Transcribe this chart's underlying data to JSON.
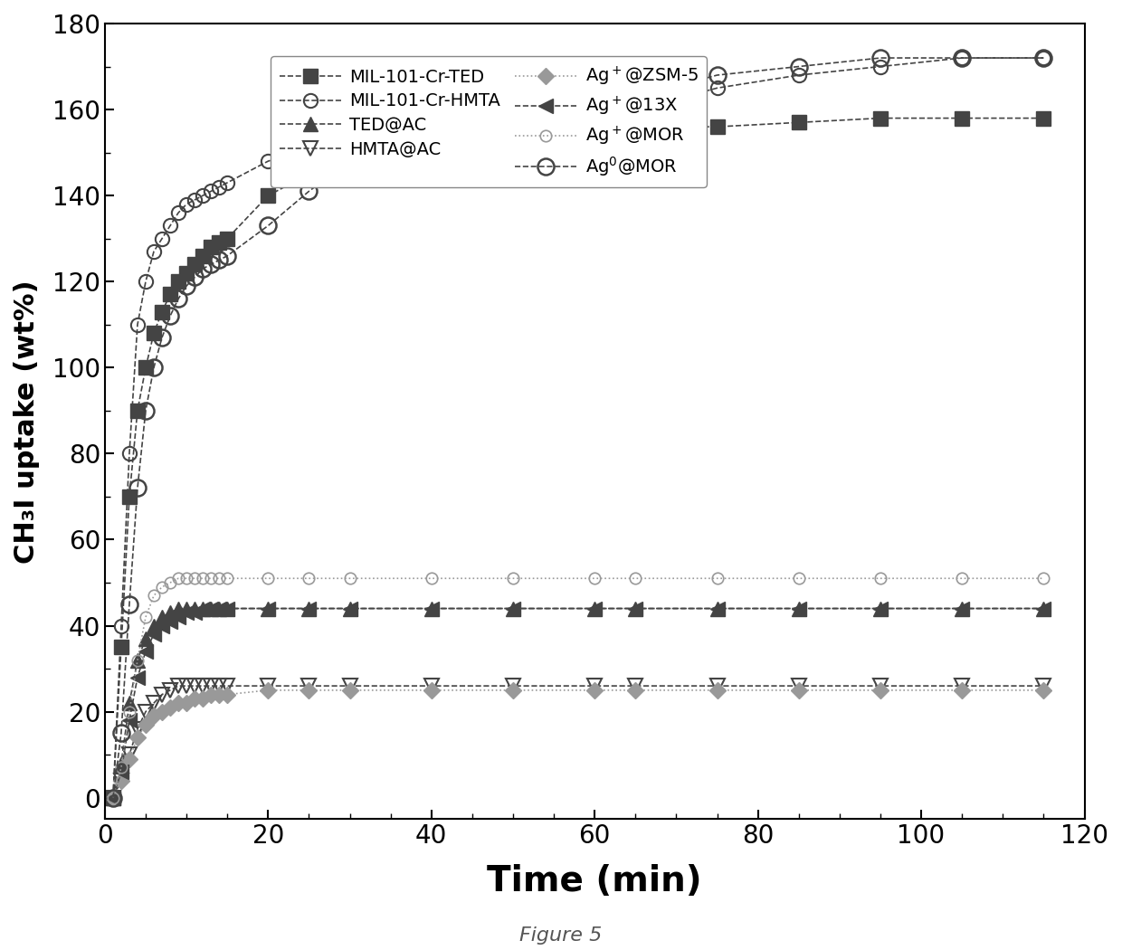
{
  "xlabel": "Time (min)",
  "ylabel": "CH₃I uptake (wt%)",
  "xlim": [
    0,
    120
  ],
  "ylim": [
    -5,
    180
  ],
  "xticks": [
    0,
    20,
    40,
    60,
    80,
    100,
    120
  ],
  "yticks": [
    0,
    20,
    40,
    60,
    80,
    100,
    120,
    140,
    160,
    180
  ],
  "figcaption": "Figure 5",
  "series": [
    {
      "label": "MIL-101-Cr-TED",
      "marker": "s",
      "fillstyle": "full",
      "x": [
        1,
        2,
        3,
        4,
        5,
        6,
        7,
        8,
        9,
        10,
        11,
        12,
        13,
        14,
        15,
        20,
        25,
        30,
        40,
        50,
        60,
        65,
        75,
        85,
        95,
        105,
        115
      ],
      "y": [
        0,
        35,
        70,
        90,
        100,
        108,
        113,
        117,
        120,
        122,
        124,
        126,
        128,
        129,
        130,
        140,
        145,
        148,
        152,
        154,
        155,
        156,
        156,
        157,
        158,
        158,
        158
      ]
    },
    {
      "label": "MIL-101-Cr-HMTA",
      "marker": "o",
      "fillstyle": "none",
      "x": [
        1,
        2,
        3,
        4,
        5,
        6,
        7,
        8,
        9,
        10,
        11,
        12,
        13,
        14,
        15,
        20,
        25,
        30,
        40,
        50,
        60,
        65,
        75,
        85,
        95,
        105,
        115
      ],
      "y": [
        0,
        40,
        80,
        110,
        120,
        127,
        130,
        133,
        136,
        138,
        139,
        140,
        141,
        142,
        143,
        148,
        151,
        154,
        156,
        157,
        158,
        160,
        165,
        168,
        170,
        172,
        172
      ]
    },
    {
      "label": "TED@AC",
      "marker": "^",
      "fillstyle": "full",
      "x": [
        1,
        2,
        3,
        4,
        5,
        6,
        7,
        8,
        9,
        10,
        11,
        12,
        13,
        14,
        15,
        20,
        25,
        30,
        40,
        50,
        60,
        65,
        75,
        85,
        95,
        105,
        115
      ],
      "y": [
        0,
        8,
        22,
        32,
        37,
        40,
        42,
        43,
        44,
        44,
        44,
        44,
        44,
        44,
        44,
        44,
        44,
        44,
        44,
        44,
        44,
        44,
        44,
        44,
        44,
        44,
        44
      ]
    },
    {
      "label": "HMTA@AC",
      "marker": "v",
      "fillstyle": "none",
      "x": [
        1,
        2,
        3,
        4,
        5,
        6,
        7,
        8,
        9,
        10,
        11,
        12,
        13,
        14,
        15,
        20,
        25,
        30,
        40,
        50,
        60,
        65,
        75,
        85,
        95,
        105,
        115
      ],
      "y": [
        0,
        4,
        10,
        16,
        20,
        22,
        24,
        25,
        26,
        26,
        26,
        26,
        26,
        26,
        26,
        26,
        26,
        26,
        26,
        26,
        26,
        26,
        26,
        26,
        26,
        26,
        26
      ]
    },
    {
      "label": "Ag$^+$@ZSM-5",
      "marker": "D",
      "fillstyle": "full",
      "x": [
        1,
        2,
        3,
        4,
        5,
        6,
        7,
        8,
        9,
        10,
        11,
        12,
        13,
        14,
        15,
        20,
        25,
        30,
        40,
        50,
        60,
        65,
        75,
        85,
        95,
        105,
        115
      ],
      "y": [
        0,
        4,
        9,
        14,
        17,
        19,
        20,
        21,
        22,
        22,
        23,
        23,
        24,
        24,
        24,
        25,
        25,
        25,
        25,
        25,
        25,
        25,
        25,
        25,
        25,
        25,
        25
      ]
    },
    {
      "label": "Ag$^+$@13X",
      "marker": "<",
      "fillstyle": "full",
      "x": [
        1,
        2,
        3,
        4,
        5,
        6,
        7,
        8,
        9,
        10,
        11,
        12,
        13,
        14,
        15,
        20,
        25,
        30,
        40,
        50,
        60,
        65,
        75,
        85,
        95,
        105,
        115
      ],
      "y": [
        0,
        6,
        18,
        28,
        34,
        38,
        40,
        41,
        42,
        43,
        43,
        44,
        44,
        44,
        44,
        44,
        44,
        44,
        44,
        44,
        44,
        44,
        44,
        44,
        44,
        44,
        44
      ]
    },
    {
      "label": "Ag$^+$@MOR",
      "marker": "o",
      "fillstyle": "none",
      "x": [
        1,
        2,
        3,
        4,
        5,
        6,
        7,
        8,
        9,
        10,
        11,
        12,
        13,
        14,
        15,
        20,
        25,
        30,
        40,
        50,
        60,
        65,
        75,
        85,
        95,
        105,
        115
      ],
      "y": [
        0,
        7,
        20,
        32,
        42,
        47,
        49,
        50,
        51,
        51,
        51,
        51,
        51,
        51,
        51,
        51,
        51,
        51,
        51,
        51,
        51,
        51,
        51,
        51,
        51,
        51,
        51
      ]
    },
    {
      "label": "Ag$^0$@MOR",
      "marker": "o",
      "fillstyle": "none",
      "x": [
        1,
        2,
        3,
        4,
        5,
        6,
        7,
        8,
        9,
        10,
        11,
        12,
        13,
        14,
        15,
        20,
        25,
        30,
        40,
        50,
        60,
        65,
        75,
        85,
        95,
        105,
        115
      ],
      "y": [
        0,
        15,
        45,
        72,
        90,
        100,
        107,
        112,
        116,
        119,
        121,
        123,
        124,
        125,
        126,
        133,
        141,
        148,
        155,
        158,
        160,
        163,
        168,
        170,
        172,
        172,
        172
      ]
    }
  ],
  "legend_items": [
    {
      "label": "MIL-101-Cr-TED",
      "marker": "s",
      "fillstyle": "full",
      "color": "#555555"
    },
    {
      "label": "MIL-101-Cr-HMTA",
      "marker": "o",
      "fillstyle": "none",
      "color": "#555555"
    },
    {
      "label": "TED@AC",
      "marker": "^",
      "fillstyle": "full",
      "color": "#555555"
    },
    {
      "label": "HMTA@AC",
      "marker": "v",
      "fillstyle": "none",
      "color": "#555555"
    },
    {
      "label": "Ag$^+$@ZSM-5",
      "marker": "D",
      "fillstyle": "full",
      "color": "#999999"
    },
    {
      "label": "Ag$^+$@13X",
      "marker": "<",
      "fillstyle": "full",
      "color": "#555555"
    },
    {
      "label": "Ag$^+$@MOR",
      "marker": "o",
      "fillstyle": "none",
      "color": "#999999"
    },
    {
      "label": "Ag$^0$@MOR",
      "marker": "o",
      "fillstyle": "none",
      "color": "#555555"
    }
  ]
}
